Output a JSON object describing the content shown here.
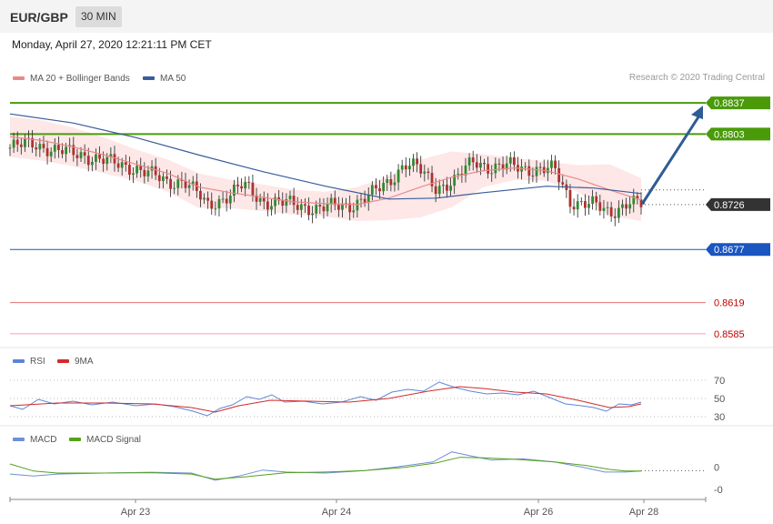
{
  "header": {
    "symbol": "EUR/GBP",
    "timeframe": "30 MIN",
    "datetime": "Monday, April 27, 2020 12:21:11 PM CET"
  },
  "legend": {
    "ma20": "MA 20 + Bollinger Bands",
    "ma50": "MA 50",
    "credit": "Research © 2020 Trading Central",
    "rsi": "RSI",
    "rsi_ma": "9MA",
    "macd": "MACD",
    "macd_signal": "MACD Signal"
  },
  "colors": {
    "ma20": "#e88a8a",
    "ma50": "#3a5c9a",
    "band_fill": "#fde3e3",
    "resistance": "#4a9a0a",
    "support": "#1a55c0",
    "support_red": "#e07070",
    "current": "#333333",
    "arrow": "#2f5c94",
    "rsi": "#5b86d6",
    "rsi_ma": "#d42a2a",
    "macd": "#6f8fd8",
    "macd_signal": "#55a21a"
  },
  "chart_data": [
    {
      "type": "candlestick",
      "pair": "EUR/GBP",
      "x_ticks": [
        "Apr 23",
        "Apr 24",
        "Apr 26",
        "Apr 28"
      ],
      "ylim": [
        0.857,
        0.8847
      ],
      "levels": [
        {
          "label": "0.8837",
          "value": 0.8837,
          "kind": "resistance"
        },
        {
          "label": "0.8803",
          "value": 0.8803,
          "kind": "resistance"
        },
        {
          "label": "0.8726",
          "value": 0.8726,
          "kind": "current"
        },
        {
          "label": "0.8677",
          "value": 0.8677,
          "kind": "support"
        },
        {
          "label": "0.8619",
          "value": 0.8619,
          "kind": "support_red"
        },
        {
          "label": "0.8585",
          "value": 0.8585,
          "kind": "support_light"
        }
      ],
      "close_path": [
        [
          0,
          0.8788
        ],
        [
          15,
          0.8793
        ],
        [
          30,
          0.8784
        ],
        [
          45,
          0.8781
        ],
        [
          65,
          0.8771
        ],
        [
          80,
          0.8766
        ],
        [
          100,
          0.875
        ],
        [
          110,
          0.8753
        ],
        [
          120,
          0.8735
        ],
        [
          125,
          0.8724
        ],
        [
          140,
          0.8738
        ],
        [
          148,
          0.8747
        ],
        [
          160,
          0.873
        ],
        [
          175,
          0.8727
        ],
        [
          195,
          0.8722
        ],
        [
          215,
          0.8725
        ],
        [
          230,
          0.8738
        ],
        [
          240,
          0.875
        ],
        [
          250,
          0.8772
        ],
        [
          258,
          0.8766
        ],
        [
          270,
          0.8745
        ],
        [
          282,
          0.8752
        ],
        [
          294,
          0.8774
        ],
        [
          306,
          0.8766
        ],
        [
          318,
          0.8768
        ],
        [
          330,
          0.8765
        ],
        [
          345,
          0.8764
        ],
        [
          355,
          0.873
        ],
        [
          368,
          0.8727
        ],
        [
          380,
          0.8716
        ],
        [
          392,
          0.873
        ],
        [
          400,
          0.8725
        ]
      ],
      "x_range": [
        0,
        400
      ],
      "ma20": [
        [
          0,
          0.88
        ],
        [
          20,
          0.8796
        ],
        [
          40,
          0.8789
        ],
        [
          60,
          0.878
        ],
        [
          80,
          0.877
        ],
        [
          100,
          0.876
        ],
        [
          120,
          0.8745
        ],
        [
          140,
          0.8739
        ],
        [
          160,
          0.8734
        ],
        [
          180,
          0.8729
        ],
        [
          200,
          0.8727
        ],
        [
          220,
          0.8726
        ],
        [
          240,
          0.8733
        ],
        [
          260,
          0.8745
        ],
        [
          280,
          0.8756
        ],
        [
          300,
          0.8763
        ],
        [
          320,
          0.8766
        ],
        [
          340,
          0.8763
        ],
        [
          360,
          0.8754
        ],
        [
          380,
          0.8742
        ],
        [
          400,
          0.8731
        ]
      ],
      "band_upper": [
        [
          0,
          0.8822
        ],
        [
          20,
          0.8818
        ],
        [
          40,
          0.881
        ],
        [
          60,
          0.8799
        ],
        [
          80,
          0.8786
        ],
        [
          100,
          0.8775
        ],
        [
          120,
          0.876
        ],
        [
          140,
          0.8753
        ],
        [
          160,
          0.8748
        ],
        [
          180,
          0.8742
        ],
        [
          200,
          0.874
        ],
        [
          220,
          0.8745
        ],
        [
          240,
          0.8757
        ],
        [
          260,
          0.8775
        ],
        [
          280,
          0.8784
        ],
        [
          300,
          0.8781
        ],
        [
          320,
          0.8777
        ],
        [
          340,
          0.8773
        ],
        [
          360,
          0.8769
        ],
        [
          380,
          0.877
        ],
        [
          400,
          0.8755
        ]
      ],
      "band_lower": [
        [
          0,
          0.8778
        ],
        [
          20,
          0.8774
        ],
        [
          40,
          0.8768
        ],
        [
          60,
          0.876
        ],
        [
          80,
          0.8752
        ],
        [
          100,
          0.874
        ],
        [
          120,
          0.8722
        ],
        [
          140,
          0.8722
        ],
        [
          160,
          0.8719
        ],
        [
          180,
          0.8715
        ],
        [
          200,
          0.8713
        ],
        [
          220,
          0.8708
        ],
        [
          240,
          0.8709
        ],
        [
          260,
          0.8712
        ],
        [
          280,
          0.8723
        ],
        [
          300,
          0.8745
        ],
        [
          320,
          0.8753
        ],
        [
          340,
          0.8752
        ],
        [
          360,
          0.874
        ],
        [
          380,
          0.8714
        ],
        [
          400,
          0.8708
        ]
      ],
      "ma50": [
        [
          0,
          0.8825
        ],
        [
          40,
          0.8815
        ],
        [
          80,
          0.8799
        ],
        [
          120,
          0.878
        ],
        [
          160,
          0.8762
        ],
        [
          200,
          0.8746
        ],
        [
          240,
          0.8732
        ],
        [
          270,
          0.8733
        ],
        [
          300,
          0.8739
        ],
        [
          340,
          0.8746
        ],
        [
          370,
          0.8744
        ],
        [
          400,
          0.8738
        ]
      ],
      "forecast_arrow": [
        [
          400,
          0.8726
        ],
        [
          430,
          0.8831
        ]
      ]
    },
    {
      "type": "line",
      "title": "RSI",
      "ylim": [
        25,
        75
      ],
      "y_ticks": [
        70,
        50,
        30
      ],
      "x_range": [
        0,
        400
      ],
      "series": [
        {
          "name": "RSI",
          "values": [
            [
              0,
              42
            ],
            [
              8,
              38
            ],
            [
              18,
              49
            ],
            [
              28,
              44
            ],
            [
              40,
              47
            ],
            [
              52,
              43
            ],
            [
              65,
              46
            ],
            [
              80,
              42
            ],
            [
              92,
              44
            ],
            [
              104,
              41
            ],
            [
              116,
              36
            ],
            [
              125,
              31
            ],
            [
              133,
              39
            ],
            [
              141,
              43
            ],
            [
              150,
              52
            ],
            [
              158,
              49
            ],
            [
              166,
              54
            ],
            [
              174,
              46
            ],
            [
              186,
              47
            ],
            [
              198,
              44
            ],
            [
              210,
              46
            ],
            [
              222,
              52
            ],
            [
              232,
              48
            ],
            [
              242,
              57
            ],
            [
              252,
              60
            ],
            [
              262,
              58
            ],
            [
              272,
              68
            ],
            [
              282,
              62
            ],
            [
              292,
              58
            ],
            [
              302,
              55
            ],
            [
              312,
              56
            ],
            [
              322,
              54
            ],
            [
              332,
              58
            ],
            [
              342,
              51
            ],
            [
              352,
              44
            ],
            [
              362,
              42
            ],
            [
              370,
              40
            ],
            [
              378,
              36
            ],
            [
              386,
              44
            ],
            [
              394,
              43
            ],
            [
              400,
              46
            ]
          ]
        },
        {
          "name": "9MA",
          "values": [
            [
              0,
              42
            ],
            [
              30,
              45
            ],
            [
              60,
              45
            ],
            [
              90,
              44
            ],
            [
              115,
              40
            ],
            [
              130,
              35
            ],
            [
              145,
              42
            ],
            [
              165,
              48
            ],
            [
              190,
              47
            ],
            [
              215,
              46
            ],
            [
              240,
              50
            ],
            [
              265,
              58
            ],
            [
              285,
              63
            ],
            [
              300,
              61
            ],
            [
              320,
              57
            ],
            [
              340,
              55
            ],
            [
              360,
              48
            ],
            [
              380,
              40
            ],
            [
              392,
              41
            ],
            [
              400,
              44
            ]
          ]
        }
      ]
    },
    {
      "type": "line",
      "title": "MACD",
      "ylim": [
        -1.35,
        1.35
      ],
      "y_ticks": [
        "0",
        "-0"
      ],
      "x_range": [
        0,
        400
      ],
      "series": [
        {
          "name": "MACD",
          "values": [
            [
              0,
              -0.05
            ],
            [
              15,
              -0.15
            ],
            [
              30,
              -0.05
            ],
            [
              60,
              0.0
            ],
            [
              90,
              0.04
            ],
            [
              115,
              0.0
            ],
            [
              130,
              -0.35
            ],
            [
              145,
              -0.15
            ],
            [
              160,
              0.15
            ],
            [
              175,
              0.05
            ],
            [
              200,
              0.0
            ],
            [
              225,
              0.12
            ],
            [
              245,
              0.3
            ],
            [
              268,
              0.55
            ],
            [
              280,
              1.05
            ],
            [
              292,
              0.85
            ],
            [
              305,
              0.65
            ],
            [
              325,
              0.7
            ],
            [
              345,
              0.55
            ],
            [
              362,
              0.3
            ],
            [
              377,
              0.05
            ],
            [
              390,
              0.05
            ],
            [
              400,
              0.1
            ]
          ]
        },
        {
          "name": "MACD Signal",
          "values": [
            [
              0,
              0.45
            ],
            [
              15,
              0.1
            ],
            [
              30,
              0.0
            ],
            [
              60,
              0.0
            ],
            [
              90,
              0.02
            ],
            [
              115,
              -0.05
            ],
            [
              130,
              -0.3
            ],
            [
              150,
              -0.18
            ],
            [
              175,
              0.02
            ],
            [
              200,
              0.05
            ],
            [
              225,
              0.12
            ],
            [
              250,
              0.28
            ],
            [
              270,
              0.5
            ],
            [
              285,
              0.78
            ],
            [
              300,
              0.75
            ],
            [
              320,
              0.68
            ],
            [
              345,
              0.55
            ],
            [
              365,
              0.38
            ],
            [
              380,
              0.18
            ],
            [
              390,
              0.1
            ],
            [
              400,
              0.1
            ]
          ]
        }
      ]
    }
  ]
}
